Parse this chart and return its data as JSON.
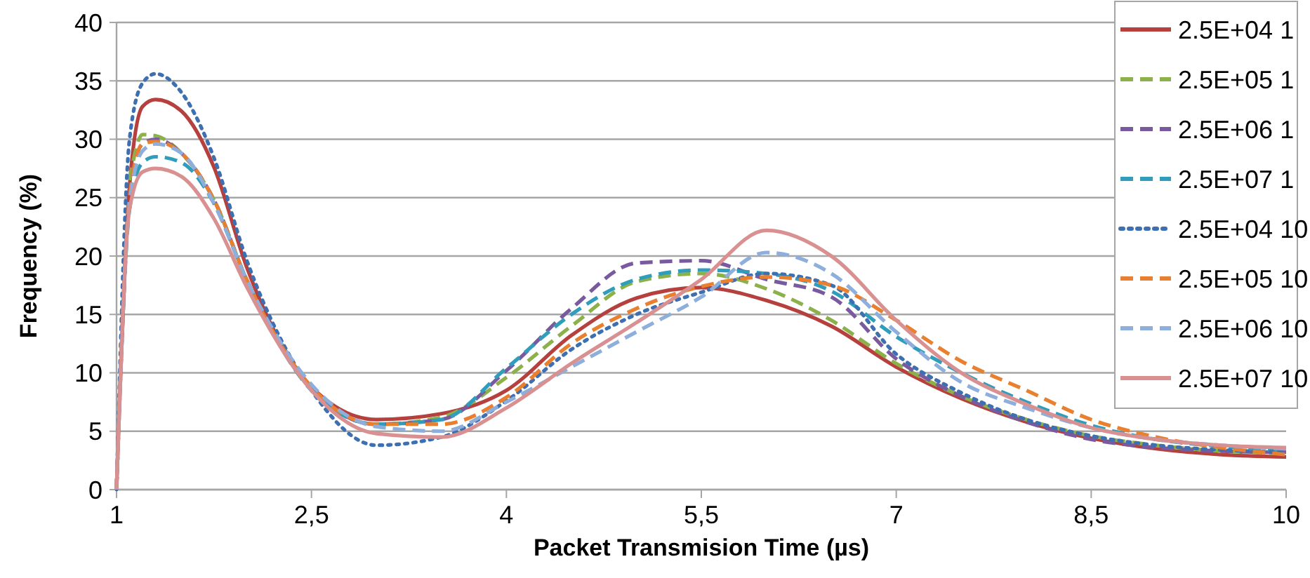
{
  "chart_data": {
    "type": "line",
    "xlabel": "Packet Transmision Time (µs)",
    "ylabel": "Frequency (%)",
    "x": [
      1,
      1.1,
      1.2,
      1.3,
      1.5,
      1.75,
      2,
      2.5,
      3,
      3.5,
      4,
      4.5,
      5,
      5.5,
      6,
      6.5,
      7,
      7.5,
      8,
      8.5,
      9,
      9.5,
      10
    ],
    "xlim": [
      1,
      10
    ],
    "xticks": [
      1,
      {
        "value": 2.5,
        "label": "2,5"
      },
      4,
      {
        "value": 5.5,
        "label": "5,5"
      },
      7,
      {
        "value": 8.5,
        "label": "8,5"
      },
      10
    ],
    "ylim": [
      0,
      40
    ],
    "yticks": [
      0,
      5,
      10,
      15,
      20,
      25,
      30,
      35,
      40
    ],
    "grid": "y",
    "legend": "top right",
    "marker": "none",
    "series": [
      {
        "name": "2.5E+04 1",
        "color": "#b5403d",
        "line_style": "solid",
        "values": [
          0,
          26,
          32.8,
          33.4,
          32.4,
          27.6,
          19.1,
          8.8,
          6,
          6.5,
          8.5,
          13.2,
          16.4,
          17.3,
          16.2,
          14,
          10.5,
          7.8,
          5.8,
          4.4,
          3.5,
          3,
          2.8
        ]
      },
      {
        "name": "2.5E+05 1",
        "color": "#8cb04a",
        "line_style": "dashed",
        "values": [
          null,
          26.5,
          30.4,
          30.3,
          28.8,
          24.8,
          18,
          8.6,
          5.6,
          6.2,
          9.6,
          14,
          17.8,
          18.5,
          17.2,
          14.5,
          10.8,
          8,
          6,
          4.6,
          3.8,
          3.3,
          3.1
        ]
      },
      {
        "name": "2.5E+06 1",
        "color": "#7a5a9e",
        "line_style": "dashed",
        "values": [
          0,
          25,
          29.6,
          30,
          28.8,
          24.8,
          18,
          8.6,
          5.6,
          6,
          10.2,
          15.5,
          19.4,
          19.6,
          18,
          16.5,
          11.2,
          8,
          5.8,
          4.3,
          3.6,
          3.3,
          3.2
        ]
      },
      {
        "name": "2.5E+07 1",
        "color": "#2f9dbb",
        "line_style": "dashed",
        "values": [
          0,
          24,
          28,
          28.5,
          28,
          24.5,
          18,
          8.5,
          5.6,
          6,
          10.4,
          15,
          18,
          18.8,
          18.5,
          17,
          13.1,
          10,
          7.5,
          5.5,
          4.3,
          3.7,
          3.3
        ]
      },
      {
        "name": "2.5E+04 10",
        "color": "#3e6fb0",
        "line_style": "dotted",
        "values": [
          0,
          30,
          34.8,
          35.6,
          34,
          28.4,
          19.7,
          8.5,
          3.8,
          4.5,
          7.6,
          12,
          15,
          16.9,
          18.5,
          17.5,
          11.6,
          8.3,
          6,
          4.6,
          3.8,
          3.4,
          3.2
        ]
      },
      {
        "name": "2.5E+05 10",
        "color": "#e9802f",
        "line_style": "dashed",
        "values": [
          0,
          25,
          29.6,
          29.8,
          28.8,
          24.8,
          18,
          8.8,
          5.6,
          5.6,
          7.9,
          12.5,
          15.5,
          17.4,
          18.2,
          17.5,
          14.5,
          11,
          8.5,
          6,
          4.5,
          3.6,
          3
        ]
      },
      {
        "name": "2.5E+06 10",
        "color": "#8eaedb",
        "line_style": "dashed",
        "values": [
          0,
          24.5,
          29,
          29.6,
          28.8,
          24.5,
          18,
          9,
          5.4,
          5,
          7.5,
          10.5,
          13.5,
          16.5,
          20.3,
          18.5,
          13.5,
          9.2,
          7,
          5.3,
          4.3,
          3.8,
          3.5
        ]
      },
      {
        "name": "2.5E+07 10",
        "color": "#d99091",
        "line_style": "solid",
        "values": [
          0,
          24,
          27.2,
          27.5,
          26.8,
          23.2,
          17.4,
          8.5,
          4.8,
          4.5,
          7,
          10.8,
          14.3,
          18,
          22.2,
          20,
          14.5,
          10,
          7.3,
          5.3,
          4.3,
          3.8,
          3.6
        ]
      }
    ]
  }
}
